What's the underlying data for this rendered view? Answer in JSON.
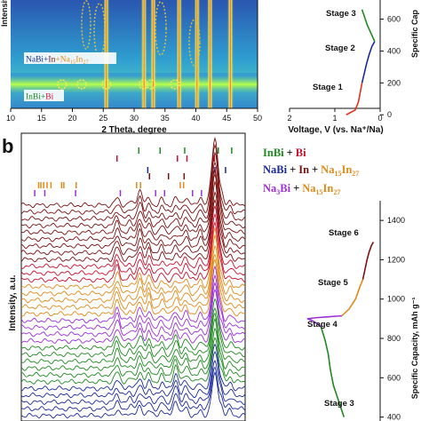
{
  "figure": {
    "panel_b_label": "b"
  },
  "colors": {
    "inbi": "#1f8a1f",
    "bi": "#c8102e",
    "nabi": "#1a2a9c",
    "in": "#7a1010",
    "na15in27": "#e08a1a",
    "na3bi": "#9b30d9",
    "heat_low": "#1e4fa8",
    "heat_mid": "#3ec9d6",
    "heat_high": "#ffe94a",
    "heat_peak": "#e0301e"
  },
  "chart_data": [
    {
      "type": "heatmap",
      "title": "",
      "ylabel": "Intensit",
      "xlabel": "2 Theta, degree",
      "xlim": [
        10,
        50
      ],
      "xticks": [
        10,
        15,
        20,
        25,
        30,
        35,
        40,
        45,
        50
      ],
      "phase_labels": {
        "nabi_line": {
          "a": "NaBi",
          "b": "+",
          "c": "In",
          "d": "+",
          "e": "Na",
          "f": "15",
          "g": "In",
          "h": "27"
        },
        "inbi_line": {
          "a": "InBi",
          "b": "+",
          "c": "Bi"
        }
      },
      "peak_lines_2theta": [
        25.5,
        31.6,
        33.1,
        37.3,
        40.2,
        42.3,
        45.6
      ],
      "circled_reflections_2theta": [
        18.3,
        21.5,
        25.5,
        31.5,
        32.7,
        36.6
      ]
    },
    {
      "type": "line",
      "xlabel": "Voltage, V (vs. Na⁺/Na)",
      "ylabel": "Specific Cap",
      "xlim": [
        2.0,
        0.0
      ],
      "ylim": [
        -60,
        720
      ],
      "xticks": [
        2,
        1,
        0
      ],
      "yticks": [
        0,
        200,
        400,
        600
      ],
      "stages": [
        "Stage 1",
        "Stage 2",
        "Stage 3"
      ],
      "series": [
        {
          "color_key": "heat_peak",
          "x": [
            0.75,
            0.55,
            0.48,
            0.44,
            0.4
          ],
          "y": [
            0,
            30,
            80,
            140,
            200
          ]
        },
        {
          "color_key": "nabi",
          "x": [
            0.4,
            0.35,
            0.3,
            0.24,
            0.18,
            0.12
          ],
          "y": [
            200,
            260,
            320,
            380,
            430,
            460
          ]
        },
        {
          "color_key": "inbi",
          "x": [
            0.12,
            0.2,
            0.28,
            0.34,
            0.4
          ],
          "y": [
            460,
            510,
            560,
            610,
            660
          ]
        }
      ]
    },
    {
      "type": "line",
      "title": "",
      "ylabel": "Intensity, a.u.",
      "xlim": [
        10,
        50
      ],
      "patterns": [
        {
          "color_key": "nabi",
          "count": 5
        },
        {
          "color_key": "inbi",
          "count": 6
        },
        {
          "color_key": "na3bi",
          "count": 4
        },
        {
          "color_key": "na15in27",
          "count": 5
        },
        {
          "color_key": "bi",
          "count": 3
        },
        {
          "color_key": "in",
          "count": 9
        }
      ],
      "reference_ticks": [
        {
          "phases": [
            "InBi"
          ],
          "color_key": "inbi",
          "positions": [
            31.0,
            34.8,
            39.2,
            45.2,
            47.6
          ]
        },
        {
          "phases": [
            "Bi"
          ],
          "color_key": "bi",
          "positions": [
            27.1,
            37.9,
            39.6,
            44.5
          ]
        },
        {
          "phases": [
            "NaBi"
          ],
          "color_key": "nabi",
          "positions": [
            32.6,
            44.6,
            46.5
          ]
        },
        {
          "phases": [
            "In"
          ],
          "color_key": "in",
          "positions": [
            32.9,
            36.3,
            39.1
          ]
        },
        {
          "phases": [
            "Na15In27"
          ],
          "color_key": "na15in27",
          "positions": [
            13.1,
            13.5,
            14.0,
            14.6,
            15.3,
            17.2,
            17.6,
            19.8,
            30.6,
            31.3,
            38.4,
            39.0,
            45.1
          ]
        },
        {
          "phases": [
            "Na3Bi"
          ],
          "color_key": "na3bi",
          "positions": [
            12.4,
            14.2,
            19.7,
            27.7,
            34.0,
            35.6,
            40.6,
            42.2
          ]
        }
      ],
      "legend": {
        "line1": {
          "a": "InBi",
          "b": "+",
          "c": "Bi"
        },
        "line2": {
          "a": "NaBi",
          "b": "+",
          "c": "In",
          "d": "+",
          "e": "Na",
          "f": "15",
          "g": "In",
          "h": "27"
        },
        "line3": {
          "a": "Na",
          "b": "3",
          "c": "Bi",
          "d": "+",
          "e": "Na",
          "f": "15",
          "g": "In",
          "h": "27"
        }
      }
    },
    {
      "type": "line",
      "ylabel": "Specific Capacity, mAh g⁻¹",
      "ylim": [
        380,
        1500
      ],
      "yticks": [
        400,
        600,
        800,
        1000,
        1200,
        1400
      ],
      "stages": [
        "Stage 3",
        "Stage 4",
        "Stage 5",
        "Stage 6"
      ],
      "series": [
        {
          "color_key": "inbi",
          "x": [
            0.35,
            0.3,
            0.25,
            0.22,
            0.2,
            0.17,
            0.13
          ],
          "y": [
            400,
            480,
            560,
            640,
            720,
            790,
            860
          ]
        },
        {
          "color_key": "na3bi",
          "x": [
            0.13,
            0.08,
            0.03,
            0.0,
            0.08,
            0.2,
            0.33
          ],
          "y": [
            860,
            880,
            895,
            900,
            905,
            910,
            915
          ]
        },
        {
          "color_key": "na15in27",
          "x": [
            0.33,
            0.4,
            0.46,
            0.5,
            0.53
          ],
          "y": [
            915,
            950,
            1000,
            1060,
            1100
          ]
        },
        {
          "color_key": "in",
          "x": [
            0.53,
            0.55,
            0.57,
            0.59,
            0.61,
            0.63
          ],
          "y": [
            1100,
            1150,
            1200,
            1240,
            1270,
            1290
          ]
        }
      ]
    }
  ]
}
